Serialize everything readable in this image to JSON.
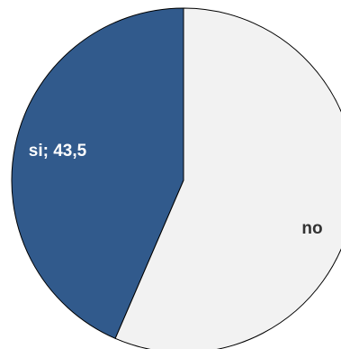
{
  "chart_data": {
    "type": "pie",
    "title": "",
    "slices": [
      {
        "label": "si",
        "value": 43.5,
        "display": "si; 43,5",
        "color": "#315a8c",
        "text_color": "#ffffff"
      },
      {
        "label": "no",
        "value": 56.5,
        "display": "no",
        "color": "#f2f2f2",
        "text_color": "#333333"
      }
    ]
  }
}
